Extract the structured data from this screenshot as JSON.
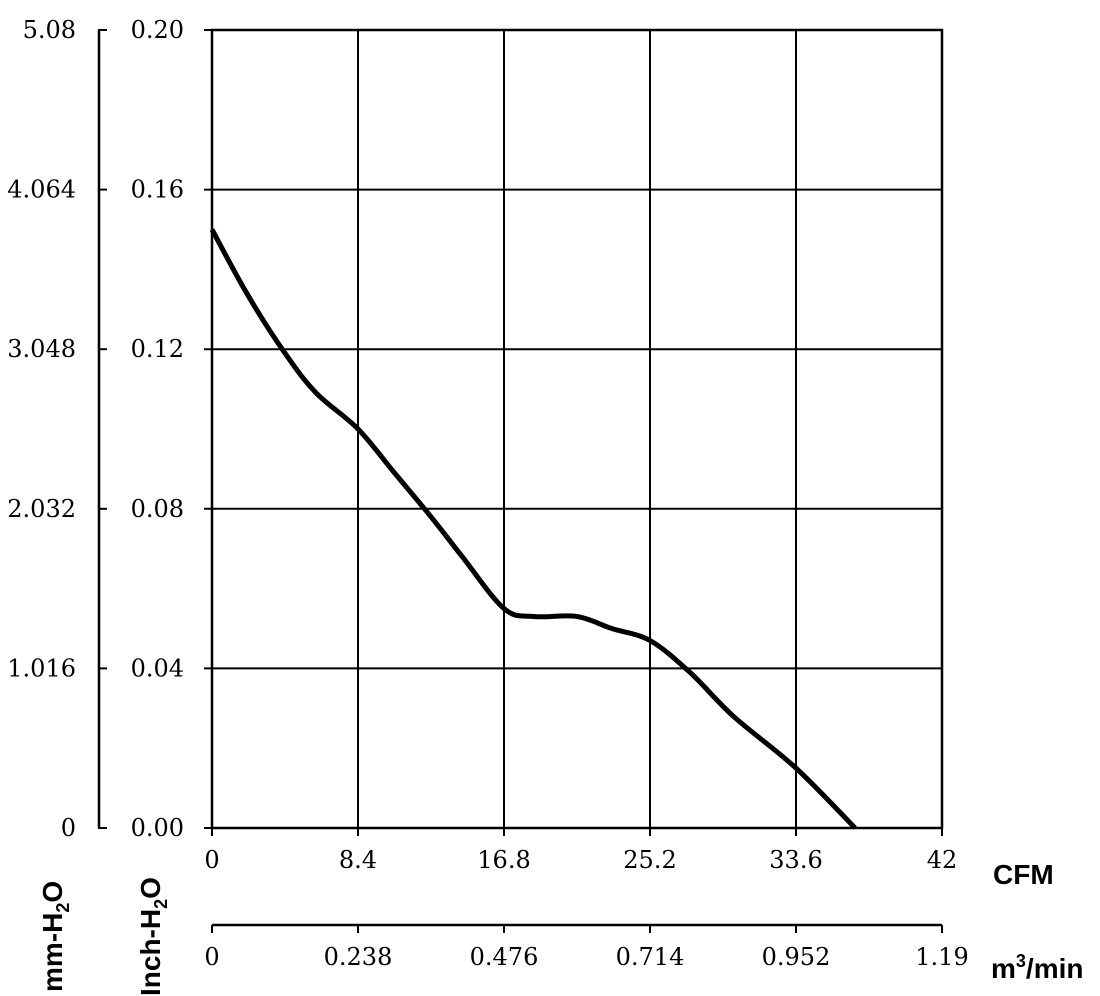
{
  "chart_data": {
    "type": "line",
    "title": "",
    "x_axis": {
      "unit_label": "CFM",
      "range": [
        0,
        42
      ],
      "ticks": [
        "0",
        "8.4",
        "16.8",
        "25.2",
        "33.6",
        "42"
      ]
    },
    "x2_axis": {
      "unit_label": "m³/min",
      "unit_base": "m",
      "unit_sup": "3",
      "unit_rest": "/min",
      "range": [
        0,
        1.19
      ],
      "ticks": [
        "0",
        "0.238",
        "0.476",
        "0.714",
        "0.952",
        "1.19"
      ]
    },
    "y_axis": {
      "unit_label": "Inch-H₂O",
      "unit_base": "Inch-H",
      "unit_sub": "2",
      "unit_rest": "O",
      "range": [
        0,
        0.2
      ],
      "ticks": [
        "0.00",
        "0.04",
        "0.08",
        "0.12",
        "0.16",
        "0.20"
      ]
    },
    "y2_axis": {
      "unit_label": "mm-H₂O",
      "unit_base": "mm-H",
      "unit_sub": "2",
      "unit_rest": "O",
      "range": [
        0,
        5.08
      ],
      "ticks": [
        "0",
        "1.016",
        "2.032",
        "3.048",
        "4.064",
        "5.08"
      ]
    },
    "grid": true,
    "series": [
      {
        "color": "#000000",
        "x": [
          0,
          2,
          4.2,
          6,
          8.4,
          10.5,
          12.6,
          14.4,
          16.8,
          18.5,
          21,
          23,
          25.2,
          27.5,
          30,
          33.6,
          37
        ],
        "y": [
          0.15,
          0.134,
          0.119,
          0.109,
          0.1,
          0.089,
          0.078,
          0.068,
          0.055,
          0.053,
          0.053,
          0.05,
          0.047,
          0.039,
          0.028,
          0.015,
          0.0
        ]
      }
    ]
  }
}
